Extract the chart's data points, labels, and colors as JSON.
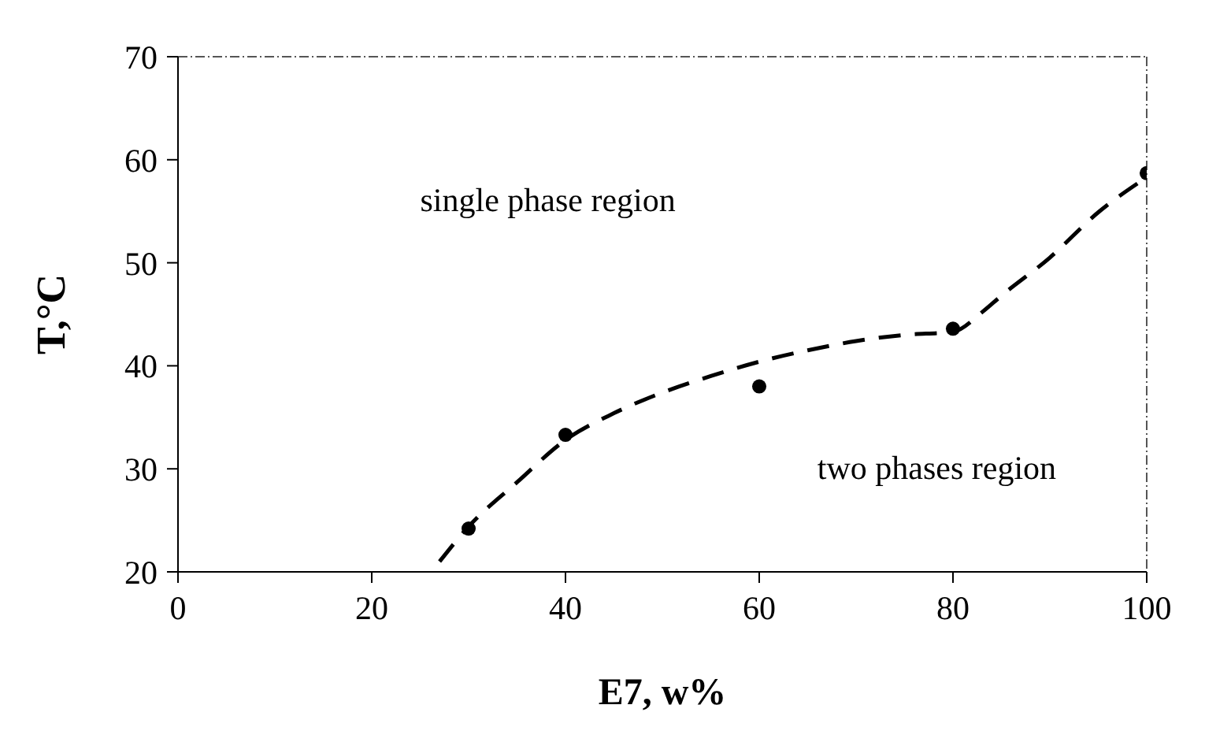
{
  "chart_data": {
    "type": "scatter",
    "xlabel": "E7, w%",
    "ylabel": "T,°C",
    "xlim": [
      0,
      100
    ],
    "xticks": [
      0,
      20,
      40,
      60,
      80,
      100
    ],
    "ylim": [
      20,
      70
    ],
    "yticks": [
      20,
      30,
      40,
      50,
      60,
      70
    ],
    "grid": false,
    "annotations": [
      "single phase region",
      "two phases region"
    ],
    "series": [
      {
        "color": "#000000",
        "marker": "circle",
        "x": [
          30,
          40,
          60,
          80,
          100
        ],
        "values": [
          24.2,
          33.3,
          38.0,
          43.6,
          58.7
        ]
      },
      {
        "type": "line",
        "color": "#000000",
        "marker": "none",
        "line_style": "dashed",
        "x": [
          27,
          30,
          35,
          40,
          45,
          50,
          55,
          60,
          65,
          70,
          75,
          80,
          83,
          85,
          90,
          95,
          100
        ],
        "values": [
          21,
          24.4,
          28.7,
          32.8,
          35.4,
          37.4,
          39.0,
          40.4,
          41.5,
          42.4,
          43.0,
          43.3,
          45.2,
          46.8,
          50.5,
          54.9,
          58.3
        ]
      }
    ]
  }
}
